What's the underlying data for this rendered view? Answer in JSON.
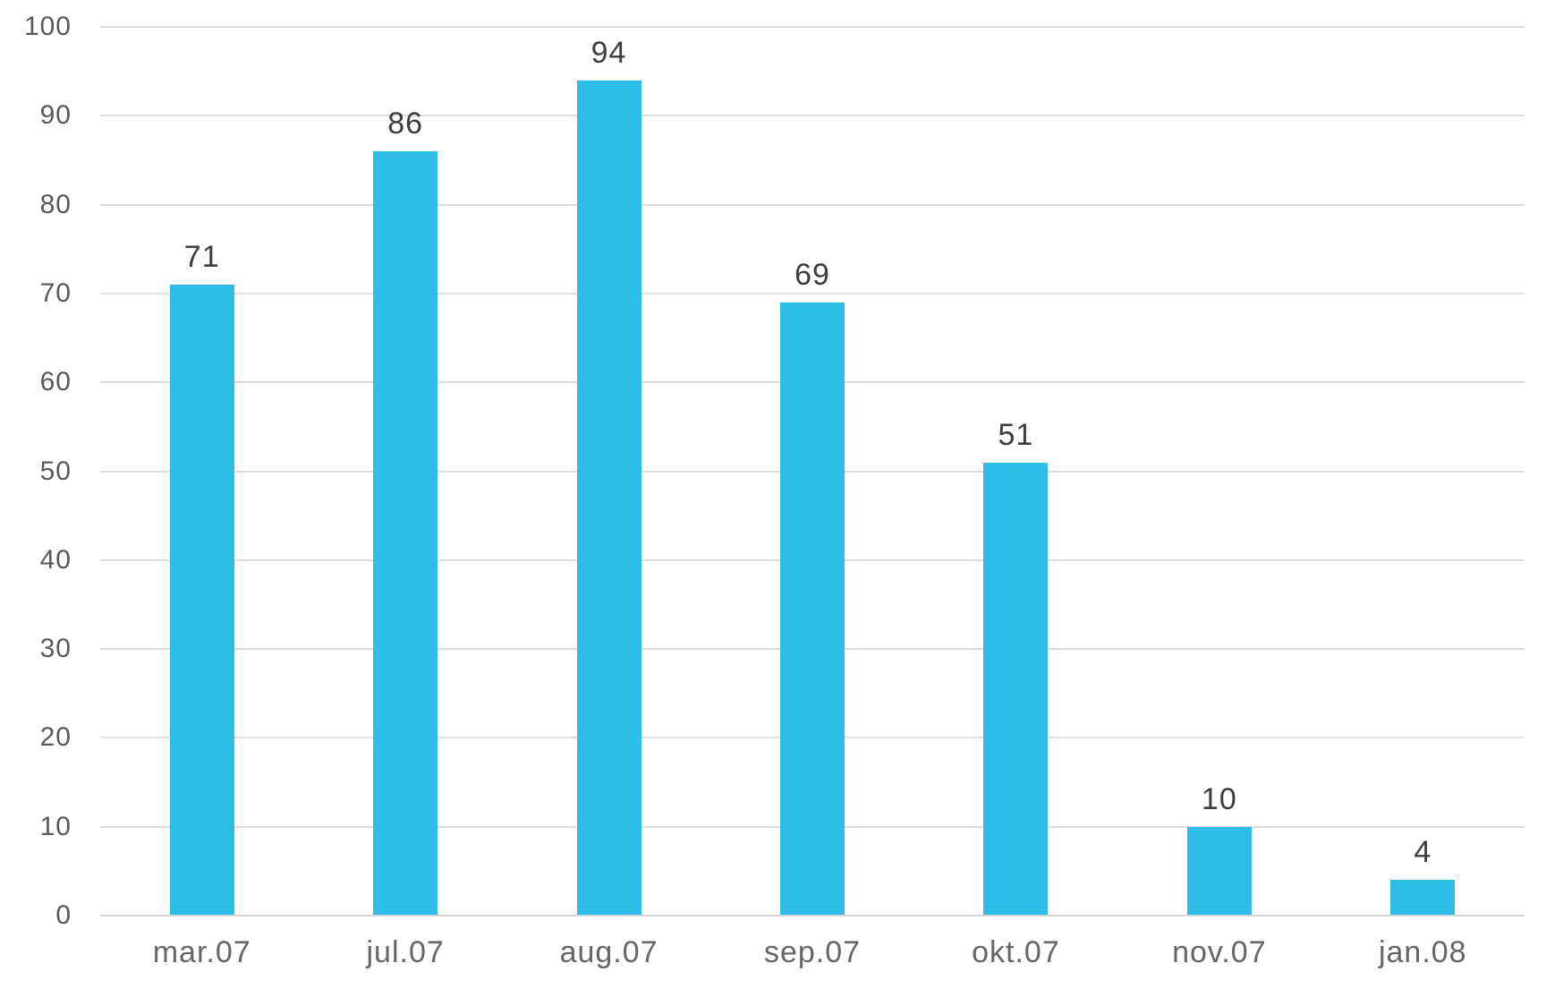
{
  "chart_data": {
    "type": "bar",
    "categories": [
      "mar.07",
      "jul.07",
      "aug.07",
      "sep.07",
      "okt.07",
      "nov.07",
      "jan.08"
    ],
    "values": [
      71,
      86,
      94,
      69,
      51,
      10,
      4
    ],
    "title": "",
    "xlabel": "",
    "ylabel": "",
    "ylim": [
      0,
      100
    ],
    "yticks": [
      0,
      10,
      20,
      30,
      40,
      50,
      60,
      70,
      80,
      90,
      100
    ],
    "grid": true,
    "legend": false,
    "data_labels": true,
    "colors": {
      "bar": "#2EBDE6",
      "gridline": "#DEDEDE",
      "axis_line": "#D4D4D4",
      "y_tick_text": "#595959",
      "x_tick_text": "#666666",
      "data_label_text": "#3D3D3D",
      "background": "#FFFFFF"
    }
  }
}
